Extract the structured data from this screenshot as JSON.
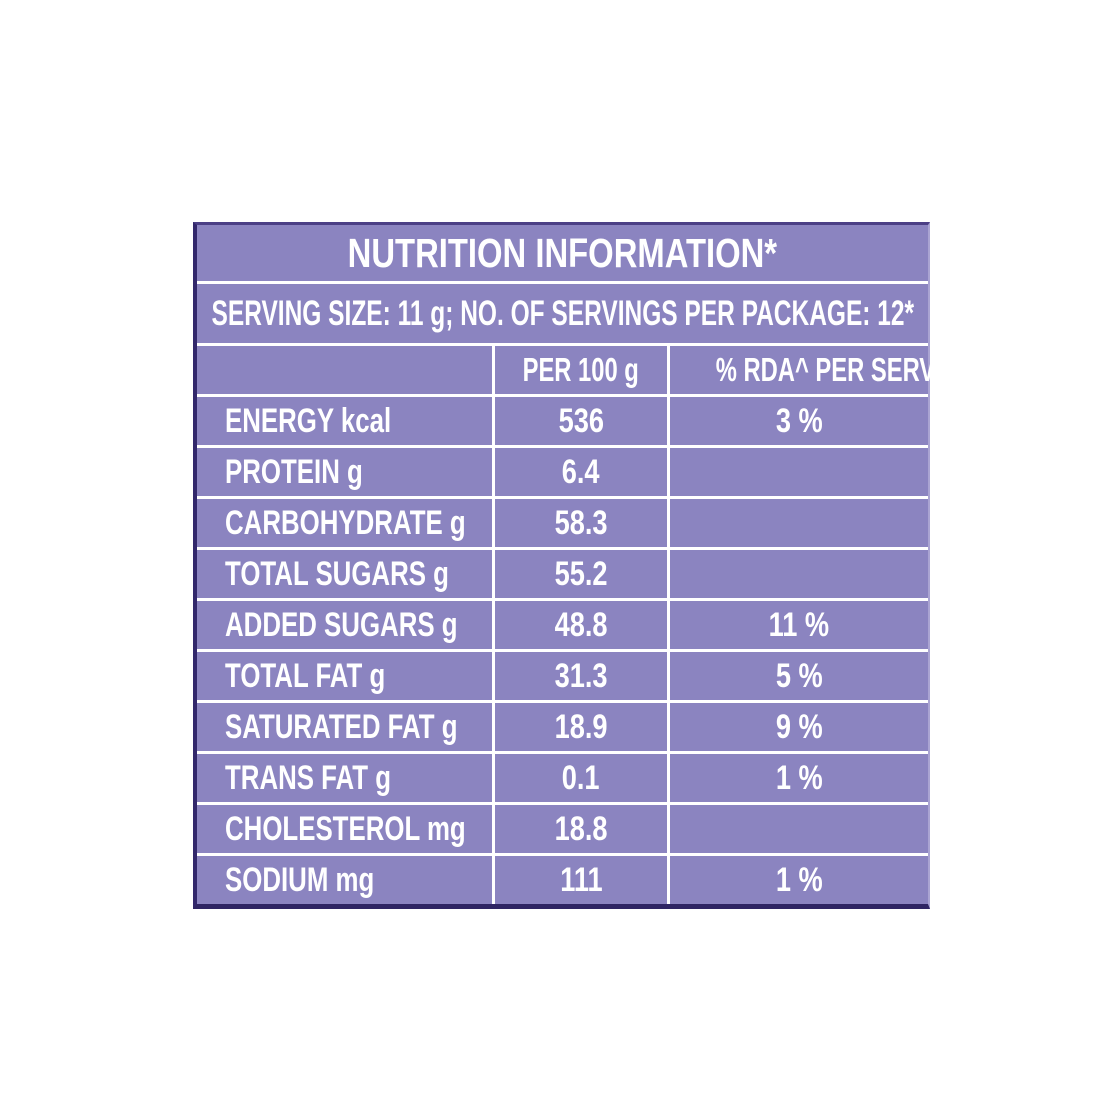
{
  "colors": {
    "page_background": "#ffffff",
    "panel_purple": "#8b84c0",
    "grid_line_white": "#ffffff",
    "outer_border_dark": "#32276b",
    "text_white": "#ffffff"
  },
  "table": {
    "title": "NUTRITION INFORMATION*",
    "serving_line": "SERVING SIZE: 11 g; NO. OF SERVINGS PER PACKAGE: 12*",
    "columns": {
      "col1": "",
      "col2": "PER 100 g",
      "col3": "% RDA^ PER SERVE"
    },
    "rows": [
      {
        "label": "ENERGY kcal",
        "per_100g": "536",
        "rda_per_serve": "3 %"
      },
      {
        "label": "PROTEIN g",
        "per_100g": "6.4",
        "rda_per_serve": ""
      },
      {
        "label": "CARBOHYDRATE g",
        "per_100g": "58.3",
        "rda_per_serve": ""
      },
      {
        "label": "TOTAL SUGARS g",
        "per_100g": "55.2",
        "rda_per_serve": ""
      },
      {
        "label": "ADDED SUGARS g",
        "per_100g": "48.8",
        "rda_per_serve": "11 %"
      },
      {
        "label": "TOTAL FAT g",
        "per_100g": "31.3",
        "rda_per_serve": "5 %"
      },
      {
        "label": "SATURATED FAT g",
        "per_100g": "18.9",
        "rda_per_serve": "9 %"
      },
      {
        "label": "TRANS FAT g",
        "per_100g": "0.1",
        "rda_per_serve": "1 %"
      },
      {
        "label": "CHOLESTEROL mg",
        "per_100g": "18.8",
        "rda_per_serve": ""
      },
      {
        "label": "SODIUM mg",
        "per_100g": "111",
        "rda_per_serve": "1 %"
      }
    ]
  }
}
